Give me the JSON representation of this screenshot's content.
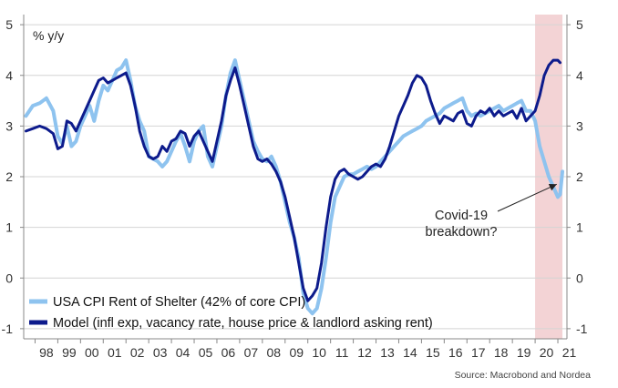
{
  "source": "Source: Macrobond and Nordea",
  "chart_data": {
    "type": "line",
    "ylabel": "% y/y",
    "ylim": [
      -1.2,
      5.2
    ],
    "xlim": [
      1997.5,
      2021.4
    ],
    "yticks": [
      -1,
      0,
      1,
      2,
      3,
      4,
      5
    ],
    "xtick_labels": [
      "98",
      "99",
      "00",
      "01",
      "02",
      "03",
      "04",
      "05",
      "06",
      "07",
      "08",
      "09",
      "10",
      "11",
      "12",
      "13",
      "14",
      "15",
      "16",
      "17",
      "18",
      "19",
      "20",
      "21"
    ],
    "grid": "horizontal",
    "legend_position": "bottom-left",
    "shaded_region": {
      "from": 2020.0,
      "to": 2021.2,
      "color": "#f3d3d5"
    },
    "annotation": {
      "lines": [
        "Covid-19",
        "breakdown?"
      ],
      "arrow_to": [
        2020.95,
        1.85
      ]
    },
    "series": [
      {
        "name": "USA CPI Rent of Shelter (42% of core CPI)",
        "color": "#8ec3ef",
        "points": [
          [
            1997.6,
            3.2
          ],
          [
            1997.9,
            3.4
          ],
          [
            1998.2,
            3.45
          ],
          [
            1998.5,
            3.55
          ],
          [
            1998.8,
            3.3
          ],
          [
            1999.0,
            2.8
          ],
          [
            1999.2,
            2.65
          ],
          [
            1999.4,
            3.0
          ],
          [
            1999.6,
            2.6
          ],
          [
            1999.8,
            2.7
          ],
          [
            2000.0,
            3.0
          ],
          [
            2000.2,
            3.2
          ],
          [
            2000.4,
            3.4
          ],
          [
            2000.6,
            3.1
          ],
          [
            2000.8,
            3.5
          ],
          [
            2001.0,
            3.8
          ],
          [
            2001.2,
            3.7
          ],
          [
            2001.4,
            3.9
          ],
          [
            2001.6,
            4.1
          ],
          [
            2001.8,
            4.15
          ],
          [
            2002.0,
            4.3
          ],
          [
            2002.2,
            3.9
          ],
          [
            2002.4,
            3.4
          ],
          [
            2002.6,
            3.1
          ],
          [
            2002.8,
            2.9
          ],
          [
            2003.0,
            2.4
          ],
          [
            2003.2,
            2.35
          ],
          [
            2003.4,
            2.3
          ],
          [
            2003.6,
            2.2
          ],
          [
            2003.8,
            2.3
          ],
          [
            2004.0,
            2.5
          ],
          [
            2004.2,
            2.7
          ],
          [
            2004.4,
            2.85
          ],
          [
            2004.6,
            2.6
          ],
          [
            2004.8,
            2.3
          ],
          [
            2005.0,
            2.7
          ],
          [
            2005.2,
            2.9
          ],
          [
            2005.4,
            3.0
          ],
          [
            2005.6,
            2.4
          ],
          [
            2005.8,
            2.2
          ],
          [
            2006.0,
            2.6
          ],
          [
            2006.2,
            3.0
          ],
          [
            2006.4,
            3.6
          ],
          [
            2006.6,
            4.05
          ],
          [
            2006.8,
            4.3
          ],
          [
            2007.0,
            3.9
          ],
          [
            2007.2,
            3.5
          ],
          [
            2007.4,
            3.1
          ],
          [
            2007.6,
            2.7
          ],
          [
            2007.8,
            2.5
          ],
          [
            2008.0,
            2.35
          ],
          [
            2008.2,
            2.3
          ],
          [
            2008.4,
            2.4
          ],
          [
            2008.6,
            2.2
          ],
          [
            2008.8,
            1.9
          ],
          [
            2009.0,
            1.5
          ],
          [
            2009.2,
            1.1
          ],
          [
            2009.4,
            0.8
          ],
          [
            2009.6,
            0.4
          ],
          [
            2009.8,
            -0.3
          ],
          [
            2010.0,
            -0.6
          ],
          [
            2010.2,
            -0.7
          ],
          [
            2010.4,
            -0.6
          ],
          [
            2010.6,
            -0.2
          ],
          [
            2010.8,
            0.4
          ],
          [
            2011.0,
            1.1
          ],
          [
            2011.2,
            1.6
          ],
          [
            2011.4,
            1.8
          ],
          [
            2011.6,
            2.0
          ],
          [
            2011.8,
            2.05
          ],
          [
            2012.0,
            2.05
          ],
          [
            2012.2,
            2.1
          ],
          [
            2012.4,
            2.15
          ],
          [
            2012.6,
            2.2
          ],
          [
            2012.8,
            2.15
          ],
          [
            2013.0,
            2.2
          ],
          [
            2013.2,
            2.3
          ],
          [
            2013.4,
            2.4
          ],
          [
            2013.6,
            2.5
          ],
          [
            2013.8,
            2.6
          ],
          [
            2014.0,
            2.7
          ],
          [
            2014.2,
            2.8
          ],
          [
            2014.4,
            2.85
          ],
          [
            2014.6,
            2.9
          ],
          [
            2014.8,
            2.95
          ],
          [
            2015.0,
            3.0
          ],
          [
            2015.2,
            3.1
          ],
          [
            2015.4,
            3.15
          ],
          [
            2015.6,
            3.2
          ],
          [
            2015.8,
            3.25
          ],
          [
            2016.0,
            3.35
          ],
          [
            2016.2,
            3.4
          ],
          [
            2016.4,
            3.45
          ],
          [
            2016.6,
            3.5
          ],
          [
            2016.8,
            3.55
          ],
          [
            2017.0,
            3.3
          ],
          [
            2017.2,
            3.2
          ],
          [
            2017.4,
            3.25
          ],
          [
            2017.6,
            3.2
          ],
          [
            2017.8,
            3.25
          ],
          [
            2018.0,
            3.3
          ],
          [
            2018.2,
            3.35
          ],
          [
            2018.4,
            3.4
          ],
          [
            2018.6,
            3.3
          ],
          [
            2018.8,
            3.35
          ],
          [
            2019.0,
            3.4
          ],
          [
            2019.2,
            3.45
          ],
          [
            2019.4,
            3.5
          ],
          [
            2019.6,
            3.3
          ],
          [
            2019.8,
            3.3
          ],
          [
            2020.0,
            3.1
          ],
          [
            2020.2,
            2.6
          ],
          [
            2020.4,
            2.3
          ],
          [
            2020.6,
            2.0
          ],
          [
            2020.8,
            1.8
          ],
          [
            2021.0,
            1.6
          ],
          [
            2021.1,
            1.65
          ],
          [
            2021.2,
            2.1
          ]
        ]
      },
      {
        "name": "Model (infl exp, vacancy rate, house price & landlord asking rent)",
        "color": "#0d1b8c",
        "points": [
          [
            1997.6,
            2.9
          ],
          [
            1997.9,
            2.95
          ],
          [
            1998.2,
            3.0
          ],
          [
            1998.5,
            2.95
          ],
          [
            1998.8,
            2.85
          ],
          [
            1999.0,
            2.55
          ],
          [
            1999.2,
            2.6
          ],
          [
            1999.4,
            3.1
          ],
          [
            1999.6,
            3.05
          ],
          [
            1999.8,
            2.9
          ],
          [
            2000.0,
            3.1
          ],
          [
            2000.2,
            3.3
          ],
          [
            2000.4,
            3.5
          ],
          [
            2000.6,
            3.7
          ],
          [
            2000.8,
            3.9
          ],
          [
            2001.0,
            3.95
          ],
          [
            2001.2,
            3.85
          ],
          [
            2001.4,
            3.9
          ],
          [
            2001.6,
            3.95
          ],
          [
            2001.8,
            4.0
          ],
          [
            2002.0,
            4.05
          ],
          [
            2002.2,
            3.8
          ],
          [
            2002.4,
            3.4
          ],
          [
            2002.6,
            2.9
          ],
          [
            2002.8,
            2.6
          ],
          [
            2003.0,
            2.4
          ],
          [
            2003.2,
            2.35
          ],
          [
            2003.4,
            2.4
          ],
          [
            2003.6,
            2.6
          ],
          [
            2003.8,
            2.5
          ],
          [
            2004.0,
            2.7
          ],
          [
            2004.2,
            2.75
          ],
          [
            2004.4,
            2.9
          ],
          [
            2004.6,
            2.85
          ],
          [
            2004.8,
            2.6
          ],
          [
            2005.0,
            2.8
          ],
          [
            2005.2,
            2.9
          ],
          [
            2005.4,
            2.7
          ],
          [
            2005.6,
            2.5
          ],
          [
            2005.8,
            2.3
          ],
          [
            2006.0,
            2.7
          ],
          [
            2006.2,
            3.1
          ],
          [
            2006.4,
            3.6
          ],
          [
            2006.6,
            3.9
          ],
          [
            2006.8,
            4.15
          ],
          [
            2007.0,
            3.8
          ],
          [
            2007.2,
            3.4
          ],
          [
            2007.4,
            3.0
          ],
          [
            2007.6,
            2.6
          ],
          [
            2007.8,
            2.35
          ],
          [
            2008.0,
            2.3
          ],
          [
            2008.2,
            2.35
          ],
          [
            2008.4,
            2.25
          ],
          [
            2008.6,
            2.1
          ],
          [
            2008.8,
            1.9
          ],
          [
            2009.0,
            1.6
          ],
          [
            2009.2,
            1.2
          ],
          [
            2009.4,
            0.8
          ],
          [
            2009.6,
            0.3
          ],
          [
            2009.8,
            -0.2
          ],
          [
            2010.0,
            -0.45
          ],
          [
            2010.2,
            -0.35
          ],
          [
            2010.4,
            -0.2
          ],
          [
            2010.6,
            0.3
          ],
          [
            2010.8,
            1.0
          ],
          [
            2011.0,
            1.6
          ],
          [
            2011.2,
            1.95
          ],
          [
            2011.4,
            2.1
          ],
          [
            2011.6,
            2.15
          ],
          [
            2011.8,
            2.05
          ],
          [
            2012.0,
            2.0
          ],
          [
            2012.2,
            1.95
          ],
          [
            2012.4,
            2.0
          ],
          [
            2012.6,
            2.1
          ],
          [
            2012.8,
            2.2
          ],
          [
            2013.0,
            2.25
          ],
          [
            2013.2,
            2.2
          ],
          [
            2013.4,
            2.35
          ],
          [
            2013.6,
            2.6
          ],
          [
            2013.8,
            2.9
          ],
          [
            2014.0,
            3.2
          ],
          [
            2014.2,
            3.4
          ],
          [
            2014.4,
            3.6
          ],
          [
            2014.6,
            3.85
          ],
          [
            2014.8,
            4.0
          ],
          [
            2015.0,
            3.95
          ],
          [
            2015.2,
            3.8
          ],
          [
            2015.4,
            3.5
          ],
          [
            2015.6,
            3.25
          ],
          [
            2015.8,
            3.05
          ],
          [
            2016.0,
            3.2
          ],
          [
            2016.2,
            3.15
          ],
          [
            2016.4,
            3.1
          ],
          [
            2016.6,
            3.25
          ],
          [
            2016.8,
            3.3
          ],
          [
            2017.0,
            3.05
          ],
          [
            2017.2,
            3.0
          ],
          [
            2017.4,
            3.2
          ],
          [
            2017.6,
            3.3
          ],
          [
            2017.8,
            3.25
          ],
          [
            2018.0,
            3.35
          ],
          [
            2018.2,
            3.2
          ],
          [
            2018.4,
            3.3
          ],
          [
            2018.6,
            3.2
          ],
          [
            2018.8,
            3.25
          ],
          [
            2019.0,
            3.3
          ],
          [
            2019.2,
            3.15
          ],
          [
            2019.4,
            3.35
          ],
          [
            2019.6,
            3.1
          ],
          [
            2019.8,
            3.2
          ],
          [
            2020.0,
            3.3
          ],
          [
            2020.2,
            3.6
          ],
          [
            2020.4,
            4.0
          ],
          [
            2020.6,
            4.2
          ],
          [
            2020.8,
            4.3
          ],
          [
            2021.0,
            4.3
          ],
          [
            2021.1,
            4.25
          ]
        ]
      }
    ]
  }
}
